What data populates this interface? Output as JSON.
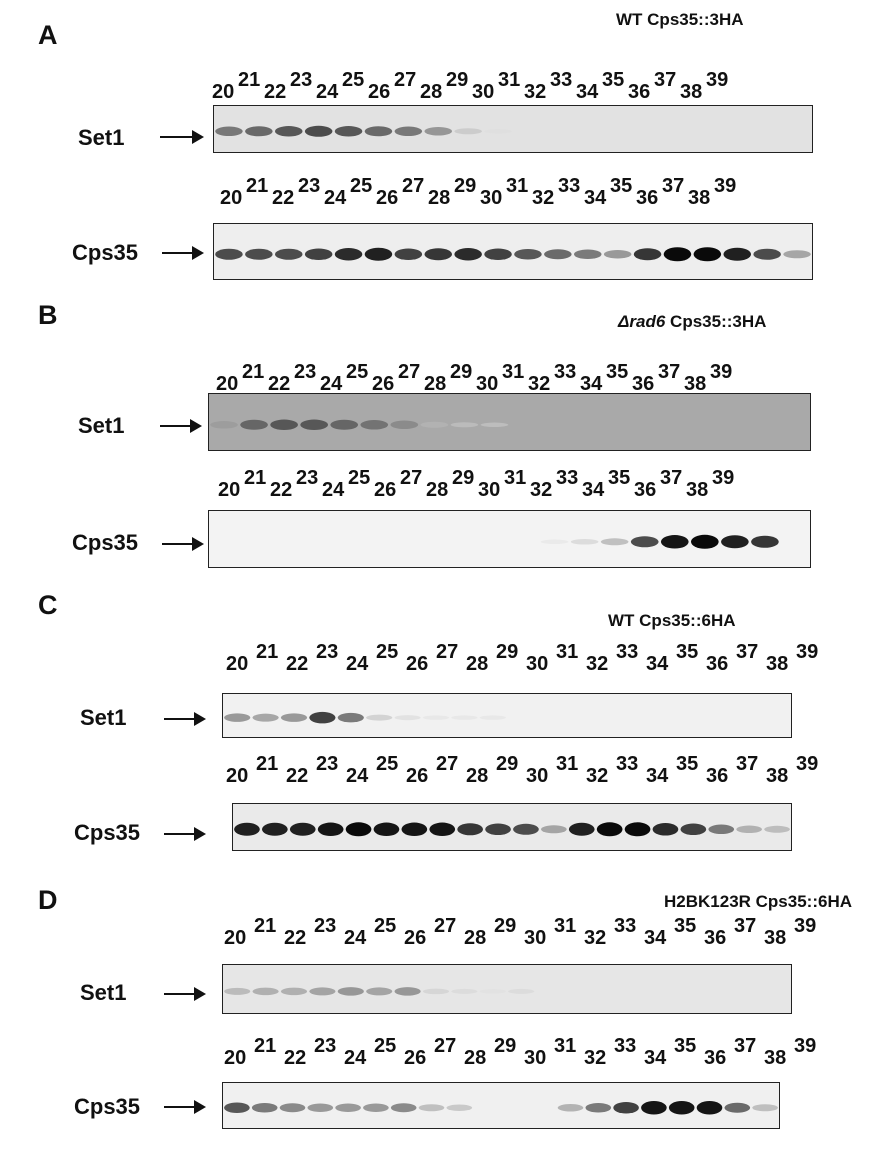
{
  "lanes": [
    "20",
    "21",
    "22",
    "23",
    "24",
    "25",
    "26",
    "27",
    "28",
    "29",
    "30",
    "31",
    "32",
    "33",
    "34",
    "35",
    "36",
    "37",
    "38",
    "39"
  ],
  "panels": [
    {
      "letter": "A",
      "condition": "WT Cps35::3HA",
      "condition_italic": "",
      "rows": [
        {
          "label": "Set1",
          "intensity": [
            0.55,
            0.6,
            0.65,
            0.7,
            0.65,
            0.6,
            0.55,
            0.45,
            0.2,
            0.05,
            0,
            0,
            0,
            0,
            0,
            0,
            0,
            0,
            0,
            0
          ],
          "bg": "#e2e2e2"
        },
        {
          "label": "Cps35",
          "intensity": [
            0.7,
            0.7,
            0.7,
            0.75,
            0.85,
            0.9,
            0.75,
            0.8,
            0.85,
            0.75,
            0.65,
            0.6,
            0.55,
            0.45,
            0.8,
            1.0,
            1.0,
            0.9,
            0.7,
            0.4
          ],
          "bg": "#eeeeee"
        }
      ]
    },
    {
      "letter": "B",
      "condition": " Cps35::3HA",
      "condition_italic": "Δrad6",
      "rows": [
        {
          "label": "Set1",
          "intensity": [
            0.35,
            0.6,
            0.65,
            0.65,
            0.6,
            0.55,
            0.45,
            0.2,
            0.1,
            0.05,
            0,
            0,
            0,
            0,
            0,
            0,
            0,
            0,
            0,
            0
          ],
          "bg": "#a9a9a9"
        },
        {
          "label": "Cps35",
          "intensity": [
            0,
            0,
            0,
            0,
            0,
            0,
            0,
            0,
            0,
            0,
            0,
            0.05,
            0.15,
            0.3,
            0.7,
            0.95,
            1.0,
            0.9,
            0.8,
            0
          ],
          "bg": "#f3f3f3"
        }
      ]
    },
    {
      "letter": "C",
      "condition": "WT Cps35::6HA",
      "condition_italic": "",
      "rows": [
        {
          "label": "Set1",
          "intensity": [
            0.45,
            0.4,
            0.45,
            0.75,
            0.55,
            0.2,
            0.1,
            0.05,
            0.05,
            0.05,
            0,
            0,
            0,
            0,
            0,
            0,
            0,
            0,
            0,
            0
          ],
          "bg": "#f1f1f1"
        },
        {
          "label": "Cps35",
          "intensity": [
            0.9,
            0.9,
            0.9,
            0.95,
            1.0,
            0.95,
            0.95,
            0.95,
            0.8,
            0.75,
            0.7,
            0.4,
            0.9,
            1.0,
            1.0,
            0.85,
            0.75,
            0.55,
            0.35,
            0.3
          ],
          "bg": "#eaeaea"
        }
      ]
    },
    {
      "letter": "D",
      "condition": "H2BK123R Cps35::6HA",
      "condition_italic": "",
      "rows": [
        {
          "label": "Set1",
          "intensity": [
            0.3,
            0.35,
            0.35,
            0.4,
            0.45,
            0.4,
            0.45,
            0.15,
            0.1,
            0.05,
            0.1,
            0,
            0,
            0,
            0,
            0,
            0,
            0,
            0,
            0
          ],
          "bg": "#e6e6e6"
        },
        {
          "label": "Cps35",
          "intensity": [
            0.65,
            0.55,
            0.5,
            0.45,
            0.45,
            0.45,
            0.5,
            0.3,
            0.25,
            0,
            0,
            0,
            0.35,
            0.55,
            0.75,
            0.95,
            0.95,
            0.95,
            0.6,
            0.3
          ],
          "bg": "#f0f0f0"
        }
      ]
    }
  ]
}
